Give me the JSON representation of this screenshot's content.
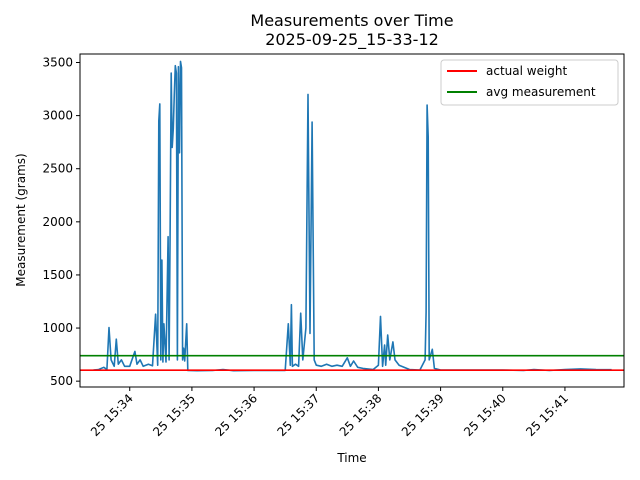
{
  "chart_data": {
    "type": "line",
    "title": "Measurements over Time",
    "subtitle": "2025-09-25_15-33-12",
    "xlabel": "Time",
    "ylabel": "Measurement (grams)",
    "xlim": [
      "2025-09-25 15:33:12",
      "2025-09-25 15:41:57"
    ],
    "ylim": [
      445,
      3580
    ],
    "x_ticks": [
      {
        "value": "2025-09-25 15:34:00",
        "label": "25 15:34"
      },
      {
        "value": "2025-09-25 15:35:00",
        "label": "25 15:35"
      },
      {
        "value": "2025-09-25 15:36:00",
        "label": "25 15:36"
      },
      {
        "value": "2025-09-25 15:37:00",
        "label": "25 15:37"
      },
      {
        "value": "2025-09-25 15:38:00",
        "label": "25 15:38"
      },
      {
        "value": "2025-09-25 15:39:00",
        "label": "25 15:39"
      },
      {
        "value": "2025-09-25 15:40:00",
        "label": "25 15:40"
      },
      {
        "value": "2025-09-25 15:41:00",
        "label": "25 15:41"
      }
    ],
    "y_ticks": [
      500,
      1000,
      1500,
      2000,
      2500,
      3000,
      3500
    ],
    "grid": false,
    "legend_position": "top-right",
    "series": [
      {
        "key": "measurement",
        "color": "#1f77b4",
        "points": [
          [
            "2025-09-25 15:33:25",
            605
          ],
          [
            "2025-09-25 15:33:30",
            610
          ],
          [
            "2025-09-25 15:33:35",
            630
          ],
          [
            "2025-09-25 15:33:38",
            610
          ],
          [
            "2025-09-25 15:33:40",
            1005
          ],
          [
            "2025-09-25 15:33:42",
            700
          ],
          [
            "2025-09-25 15:33:45",
            640
          ],
          [
            "2025-09-25 15:33:47",
            895
          ],
          [
            "2025-09-25 15:33:49",
            660
          ],
          [
            "2025-09-25 15:33:52",
            700
          ],
          [
            "2025-09-25 15:33:55",
            640
          ],
          [
            "2025-09-25 15:34:00",
            640
          ],
          [
            "2025-09-25 15:34:05",
            780
          ],
          [
            "2025-09-25 15:34:07",
            660
          ],
          [
            "2025-09-25 15:34:10",
            700
          ],
          [
            "2025-09-25 15:34:13",
            640
          ],
          [
            "2025-09-25 15:34:18",
            660
          ],
          [
            "2025-09-25 15:34:22",
            645
          ],
          [
            "2025-09-25 15:34:25",
            1130
          ],
          [
            "2025-09-25 15:34:27",
            650
          ],
          [
            "2025-09-25 15:34:28",
            2950
          ],
          [
            "2025-09-25 15:34:29",
            3110
          ],
          [
            "2025-09-25 15:34:30",
            700
          ],
          [
            "2025-09-25 15:34:31",
            1640
          ],
          [
            "2025-09-25 15:34:32",
            680
          ],
          [
            "2025-09-25 15:34:33",
            1040
          ],
          [
            "2025-09-25 15:34:35",
            680
          ],
          [
            "2025-09-25 15:34:37",
            1860
          ],
          [
            "2025-09-25 15:34:38",
            700
          ],
          [
            "2025-09-25 15:34:39",
            1880
          ],
          [
            "2025-09-25 15:34:40",
            3400
          ],
          [
            "2025-09-25 15:34:41",
            2700
          ],
          [
            "2025-09-25 15:34:42",
            2880
          ],
          [
            "2025-09-25 15:34:43",
            3200
          ],
          [
            "2025-09-25 15:34:44",
            3470
          ],
          [
            "2025-09-25 15:34:45",
            3400
          ],
          [
            "2025-09-25 15:34:46",
            700
          ],
          [
            "2025-09-25 15:34:47",
            3460
          ],
          [
            "2025-09-25 15:34:48",
            2650
          ],
          [
            "2025-09-25 15:34:49",
            3510
          ],
          [
            "2025-09-25 15:34:50",
            3450
          ],
          [
            "2025-09-25 15:34:51",
            700
          ],
          [
            "2025-09-25 15:34:52",
            810
          ],
          [
            "2025-09-25 15:34:53",
            690
          ],
          [
            "2025-09-25 15:34:55",
            1040
          ],
          [
            "2025-09-25 15:34:56",
            600
          ],
          [
            "2025-09-25 15:35:05",
            598
          ],
          [
            "2025-09-25 15:35:20",
            600
          ],
          [
            "2025-09-25 15:35:30",
            610
          ],
          [
            "2025-09-25 15:35:40",
            598
          ],
          [
            "2025-09-25 15:36:00",
            600
          ],
          [
            "2025-09-25 15:36:30",
            600
          ],
          [
            "2025-09-25 15:36:33",
            1040
          ],
          [
            "2025-09-25 15:36:35",
            650
          ],
          [
            "2025-09-25 15:36:36",
            1220
          ],
          [
            "2025-09-25 15:36:37",
            640
          ],
          [
            "2025-09-25 15:36:40",
            660
          ],
          [
            "2025-09-25 15:36:43",
            640
          ],
          [
            "2025-09-25 15:36:45",
            1140
          ],
          [
            "2025-09-25 15:36:47",
            700
          ],
          [
            "2025-09-25 15:36:50",
            1000
          ],
          [
            "2025-09-25 15:36:52",
            3200
          ],
          [
            "2025-09-25 15:36:54",
            950
          ],
          [
            "2025-09-25 15:36:56",
            2940
          ],
          [
            "2025-09-25 15:36:58",
            700
          ],
          [
            "2025-09-25 15:37:00",
            650
          ],
          [
            "2025-09-25 15:37:05",
            640
          ],
          [
            "2025-09-25 15:37:10",
            660
          ],
          [
            "2025-09-25 15:37:15",
            640
          ],
          [
            "2025-09-25 15:37:20",
            650
          ],
          [
            "2025-09-25 15:37:25",
            640
          ],
          [
            "2025-09-25 15:37:30",
            720
          ],
          [
            "2025-09-25 15:37:33",
            640
          ],
          [
            "2025-09-25 15:37:36",
            690
          ],
          [
            "2025-09-25 15:37:40",
            630
          ],
          [
            "2025-09-25 15:37:45",
            620
          ],
          [
            "2025-09-25 15:37:55",
            610
          ],
          [
            "2025-09-25 15:38:00",
            650
          ],
          [
            "2025-09-25 15:38:02",
            1110
          ],
          [
            "2025-09-25 15:38:04",
            640
          ],
          [
            "2025-09-25 15:38:06",
            840
          ],
          [
            "2025-09-25 15:38:07",
            650
          ],
          [
            "2025-09-25 15:38:09",
            935
          ],
          [
            "2025-09-25 15:38:11",
            700
          ],
          [
            "2025-09-25 15:38:14",
            870
          ],
          [
            "2025-09-25 15:38:16",
            700
          ],
          [
            "2025-09-25 15:38:20",
            650
          ],
          [
            "2025-09-25 15:38:30",
            610
          ],
          [
            "2025-09-25 15:38:40",
            605
          ],
          [
            "2025-09-25 15:38:45",
            700
          ],
          [
            "2025-09-25 15:38:46",
            1150
          ],
          [
            "2025-09-25 15:38:47",
            3100
          ],
          [
            "2025-09-25 15:38:48",
            2800
          ],
          [
            "2025-09-25 15:38:49",
            700
          ],
          [
            "2025-09-25 15:38:52",
            800
          ],
          [
            "2025-09-25 15:38:54",
            620
          ],
          [
            "2025-09-25 15:39:00",
            605
          ],
          [
            "2025-09-25 15:39:30",
            605
          ],
          [
            "2025-09-25 15:40:00",
            605
          ],
          [
            "2025-09-25 15:40:20",
            600
          ],
          [
            "2025-09-25 15:40:30",
            610
          ],
          [
            "2025-09-25 15:40:45",
            600
          ],
          [
            "2025-09-25 15:41:00",
            610
          ],
          [
            "2025-09-25 15:41:15",
            615
          ],
          [
            "2025-09-25 15:41:30",
            610
          ],
          [
            "2025-09-25 15:41:45",
            608
          ]
        ]
      },
      {
        "key": "actual",
        "name": "actual weight",
        "color": "#ff0000",
        "value": 603
      },
      {
        "key": "avg",
        "name": "avg measurement",
        "color": "#008000",
        "value": 740
      }
    ]
  }
}
